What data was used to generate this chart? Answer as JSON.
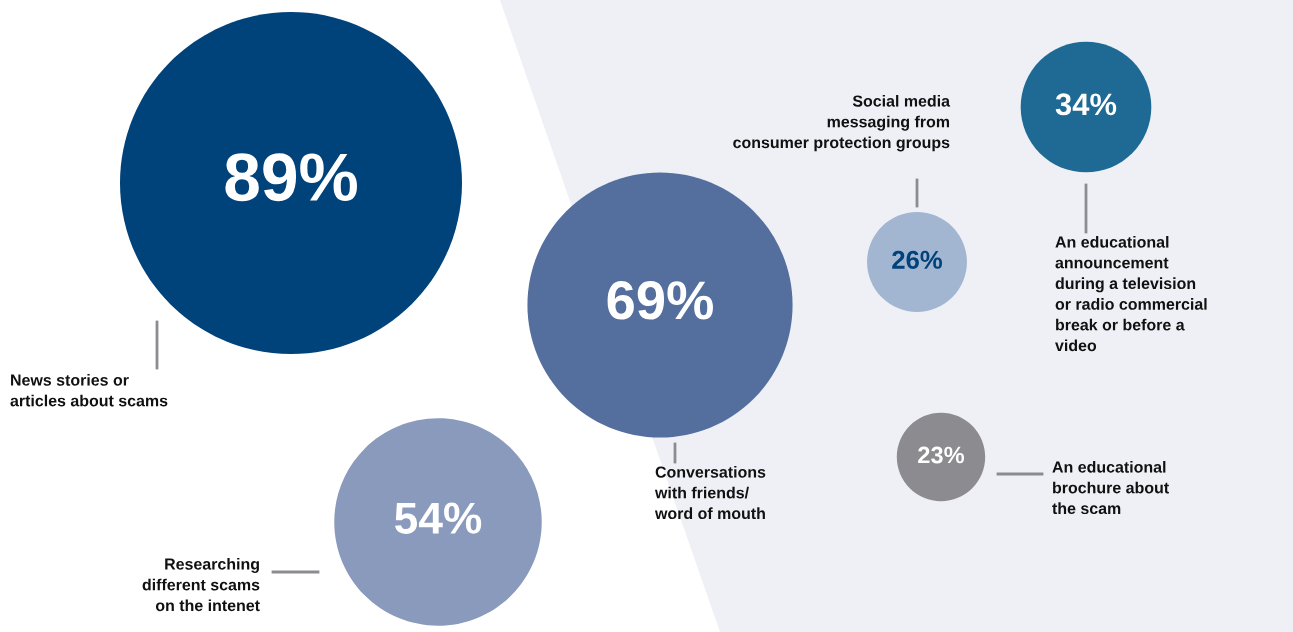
{
  "chart_data": {
    "type": "other",
    "categories": [
      "News stories or\narticles about scams",
      "Conversations\nwith friends/\nword of mouth",
      "Researching\ndifferent scams\non the intenet",
      "Social media\nmessaging from\nconsumer protection groups",
      "An educational\nannouncement\nduring a television\nor radio commercial\nbreak or before a\nvideo",
      "An educational\nbrochure about\nthe scam"
    ],
    "values": [
      89,
      69,
      54,
      26,
      34,
      23
    ],
    "value_labels": [
      "89%",
      "69%",
      "54%",
      "26%",
      "34%",
      "23%"
    ],
    "colors": [
      "#00427a",
      "#546e9e",
      "#8a9abd",
      "#a2b6d2",
      "#1f6a94",
      "#8c8c90"
    ]
  }
}
